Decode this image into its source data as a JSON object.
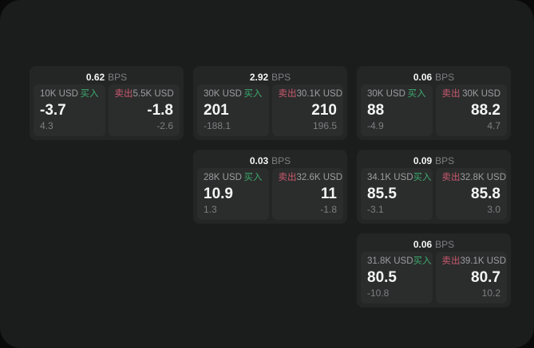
{
  "colors": {
    "page_bg": "#0a0a0a",
    "panel_bg": "#1b1c1c",
    "card_bg": "#242525",
    "tile_bg": "#2b2c2c",
    "text_primary": "#f4f5f5",
    "text_secondary": "#9d9ea0",
    "text_muted": "#7e7f81",
    "buy_green": "#3cab6f",
    "sell_red": "#c95a6e"
  },
  "labels": {
    "bps_unit": "BPS",
    "buy": "买入",
    "sell": "卖出"
  },
  "cards": [
    {
      "bps": "0.62",
      "grid": {
        "row": 1,
        "col": 1
      },
      "buy": {
        "amount": "10K USD",
        "value": "-3.7",
        "delta": "4.3"
      },
      "sell": {
        "amount": "5.5K USD",
        "value": "-1.8",
        "delta": "-2.6"
      }
    },
    {
      "bps": "2.92",
      "grid": {
        "row": 1,
        "col": 2
      },
      "buy": {
        "amount": "30K USD",
        "value": "201",
        "delta": "-188.1"
      },
      "sell": {
        "amount": "30.1K USD",
        "value": "210",
        "delta": "196.5"
      }
    },
    {
      "bps": "0.06",
      "grid": {
        "row": 1,
        "col": 3
      },
      "buy": {
        "amount": "30K USD",
        "value": "88",
        "delta": "-4.9"
      },
      "sell": {
        "amount": "30K USD",
        "value": "88.2",
        "delta": "4.7"
      }
    },
    {
      "bps": "0.03",
      "grid": {
        "row": 2,
        "col": 2
      },
      "buy": {
        "amount": "28K USD",
        "value": "10.9",
        "delta": "1.3"
      },
      "sell": {
        "amount": "32.6K USD",
        "value": "11",
        "delta": "-1.8"
      }
    },
    {
      "bps": "0.09",
      "grid": {
        "row": 2,
        "col": 3
      },
      "buy": {
        "amount": "34.1K USD",
        "value": "85.5",
        "delta": "-3.1"
      },
      "sell": {
        "amount": "32.8K USD",
        "value": "85.8",
        "delta": "3.0"
      }
    },
    {
      "bps": "0.06",
      "grid": {
        "row": 3,
        "col": 3
      },
      "buy": {
        "amount": "31.8K USD",
        "value": "80.5",
        "delta": "-10.8"
      },
      "sell": {
        "amount": "39.1K USD",
        "value": "80.7",
        "delta": "10.2"
      }
    }
  ]
}
